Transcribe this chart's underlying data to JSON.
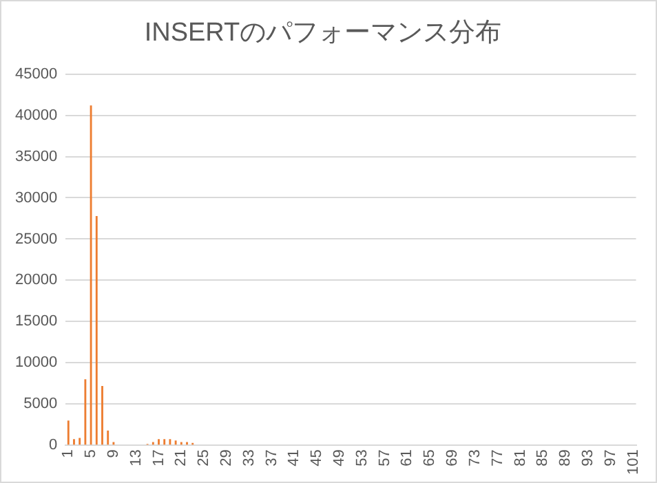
{
  "chart_data": {
    "type": "bar",
    "title": "INSERTのパフォーマンス分布",
    "categories": [
      "1",
      null,
      null,
      null,
      "5",
      null,
      null,
      null,
      "9",
      null,
      null,
      null,
      "13",
      null,
      null,
      null,
      "17",
      null,
      null,
      null,
      "21",
      null,
      null,
      null,
      "25",
      null,
      null,
      null,
      "29",
      null,
      null,
      null,
      "33",
      null,
      null,
      null,
      "37",
      null,
      null,
      null,
      "41",
      null,
      null,
      null,
      "45",
      null,
      null,
      null,
      "49",
      null,
      null,
      null,
      "53",
      null,
      null,
      null,
      "57",
      null,
      null,
      null,
      "61",
      null,
      null,
      null,
      "65",
      null,
      null,
      null,
      "69",
      null,
      null,
      null,
      "73",
      null,
      null,
      null,
      "77",
      null,
      null,
      null,
      "81",
      null,
      null,
      null,
      "85",
      null,
      null,
      null,
      "89",
      null,
      null,
      null,
      "93",
      null,
      null,
      null,
      "97",
      null,
      null,
      null,
      "101"
    ],
    "values": [
      3000,
      750,
      900,
      8000,
      41200,
      27800,
      7200,
      1800,
      400,
      0,
      0,
      0,
      0,
      0,
      170,
      400,
      750,
      750,
      750,
      580,
      400,
      400,
      290,
      0,
      0,
      0,
      0,
      0,
      0,
      0,
      0,
      0,
      0,
      0,
      0,
      0,
      0,
      0,
      0,
      0,
      0,
      0,
      0,
      0,
      0,
      0,
      0,
      0,
      0,
      0,
      0,
      0,
      0,
      0,
      0,
      0,
      0,
      0,
      0,
      0,
      0,
      0,
      0,
      0,
      0,
      0,
      0,
      0,
      0,
      0,
      0,
      0,
      0,
      0,
      0,
      0,
      0,
      0,
      0,
      0,
      0,
      0,
      0,
      0,
      0,
      0,
      0,
      0,
      0,
      0,
      0,
      0,
      0,
      0,
      0,
      0,
      0,
      0,
      0,
      0,
      0
    ],
    "color": "#ed7d31",
    "ylim": [
      0,
      45000
    ],
    "yticks": [
      0,
      5000,
      10000,
      15000,
      20000,
      25000,
      30000,
      35000,
      40000,
      45000
    ],
    "grid": "y",
    "legend": false
  }
}
